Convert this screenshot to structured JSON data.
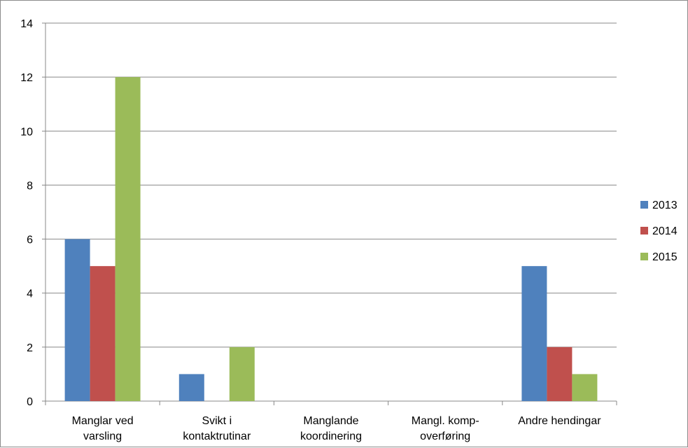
{
  "chart_data": {
    "type": "bar",
    "categories": [
      [
        "Manglar ved",
        "varsling"
      ],
      [
        "Svikt i",
        "kontaktrutinar"
      ],
      [
        "Manglande",
        "koordinering"
      ],
      [
        "Mangl. komp-",
        "overføring"
      ],
      [
        "Andre hendingar"
      ]
    ],
    "series": [
      {
        "name": "2013",
        "color": "#4f81bd",
        "values": [
          6,
          1,
          0,
          0,
          5
        ]
      },
      {
        "name": "2014",
        "color": "#c0504d",
        "values": [
          5,
          0,
          0,
          0,
          2
        ]
      },
      {
        "name": "2015",
        "color": "#9bbb59",
        "values": [
          12,
          2,
          0,
          0,
          1
        ]
      }
    ],
    "ylim": [
      0,
      14
    ],
    "yticks": [
      0,
      2,
      4,
      6,
      8,
      10,
      12,
      14
    ],
    "grid": true,
    "legend": "right"
  }
}
